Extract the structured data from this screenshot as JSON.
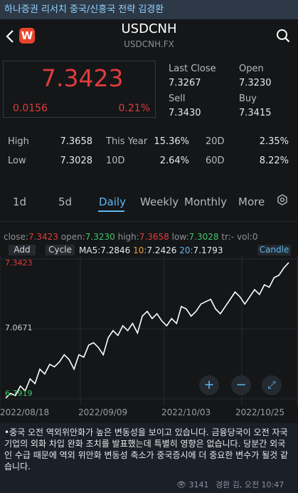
{
  "channel": {
    "title": "하나증권 리서치 중국/신흥국 전략 김경환"
  },
  "header": {
    "title": "USDCNH",
    "subtitle": "USDCNH.FX",
    "logo": "W"
  },
  "price": {
    "last": "7.3423",
    "change": "0.0156",
    "change_pct": "0.21%"
  },
  "quote": {
    "last_close_label": "Last Close",
    "last_close": "7.3267",
    "open_label": "Open",
    "open": "7.3230",
    "sell_label": "Sell",
    "sell": "7.3430",
    "buy_label": "Buy",
    "buy": "7.3415"
  },
  "stats": {
    "high_label": "High",
    "high": "7.3658",
    "this_year_label": "This Year",
    "this_year": "15.36%",
    "d20_label": "20D",
    "d20": "2.35%",
    "low_label": "Low",
    "low": "7.3028",
    "d10_label": "10D",
    "d10": "2.64%",
    "d60_label": "60D",
    "d60": "8.22%"
  },
  "tabs": [
    "1d",
    "5d",
    "Daily",
    "Weekly",
    "Monthly",
    "More"
  ],
  "ohlc": {
    "close_label": "close:",
    "close": "7.3423",
    "open_label": "open:",
    "open": "7.3230",
    "high_label": "high:",
    "high": "7.3658",
    "low_label": "low:",
    "low": "7.3028",
    "tr_label": "tr:",
    "tr": "-",
    "vol_label": "vol:",
    "vol": "0"
  },
  "toolbar": {
    "add": "Add",
    "cycle": "Cycle",
    "candle": "Candle"
  },
  "ma": {
    "ma5_label": "MA5:",
    "ma5": "7.2846",
    "ma10_label": "10:",
    "ma10": "7.2426",
    "ma20_label": "20:",
    "ma20": "7.1793"
  },
  "colors": {
    "up": "#e03c3c",
    "down": "#3ec76b",
    "accent": "#5fb8ef",
    "ma5": "#e8e9ea",
    "ma10": "#e6a23c",
    "ma20": "#5fb8ef"
  },
  "chart_data": {
    "type": "line",
    "title": "",
    "xlabel": "",
    "ylabel": "",
    "y_ticks": [
      "7.3423",
      "7.0671",
      "6.7919"
    ],
    "x_ticks": [
      "2022/08/18",
      "2022/09/09",
      "2022/10/03",
      "2022/10/25"
    ],
    "ylim": [
      6.7919,
      7.3423
    ],
    "series": [
      {
        "name": "",
        "values": [
          6.78,
          6.8,
          6.79,
          6.83,
          6.81,
          6.86,
          6.84,
          6.9,
          6.88,
          6.92,
          6.91,
          6.93,
          6.96,
          6.94,
          6.9,
          6.96,
          6.95,
          7.0,
          7.01,
          6.99,
          6.96,
          7.03,
          7.06,
          7.04,
          7.08,
          7.06,
          7.09,
          7.05,
          7.12,
          7.14,
          7.11,
          7.13,
          7.1,
          7.08,
          7.11,
          7.09,
          7.16,
          7.15,
          7.12,
          7.14,
          7.17,
          7.18,
          7.19,
          7.15,
          7.13,
          7.16,
          7.19,
          7.22,
          7.2,
          7.17,
          7.2,
          7.23,
          7.21,
          7.25,
          7.24,
          7.28,
          7.29,
          7.32,
          7.342
        ]
      }
    ]
  },
  "chart_icons": {
    "zoom_in": "plus-icon",
    "zoom_out": "minus-icon",
    "fullscreen": "expand-icon"
  },
  "message": {
    "text": "•중국 오전 역외위안화가 높은 변동성을 보이고 있습니다. 금융당국이 오전 자국기업의 외화 차입 완화 조치를 발표했는데 특별히 영향은 없습니다. 당분간 외국인 수급 때문에 역외 위안화 변동성 축소가 중국증시에 더 중요한 변수가 될것 같습니다.",
    "views": "3141",
    "meta": "경환 김, 오전 10:47"
  }
}
